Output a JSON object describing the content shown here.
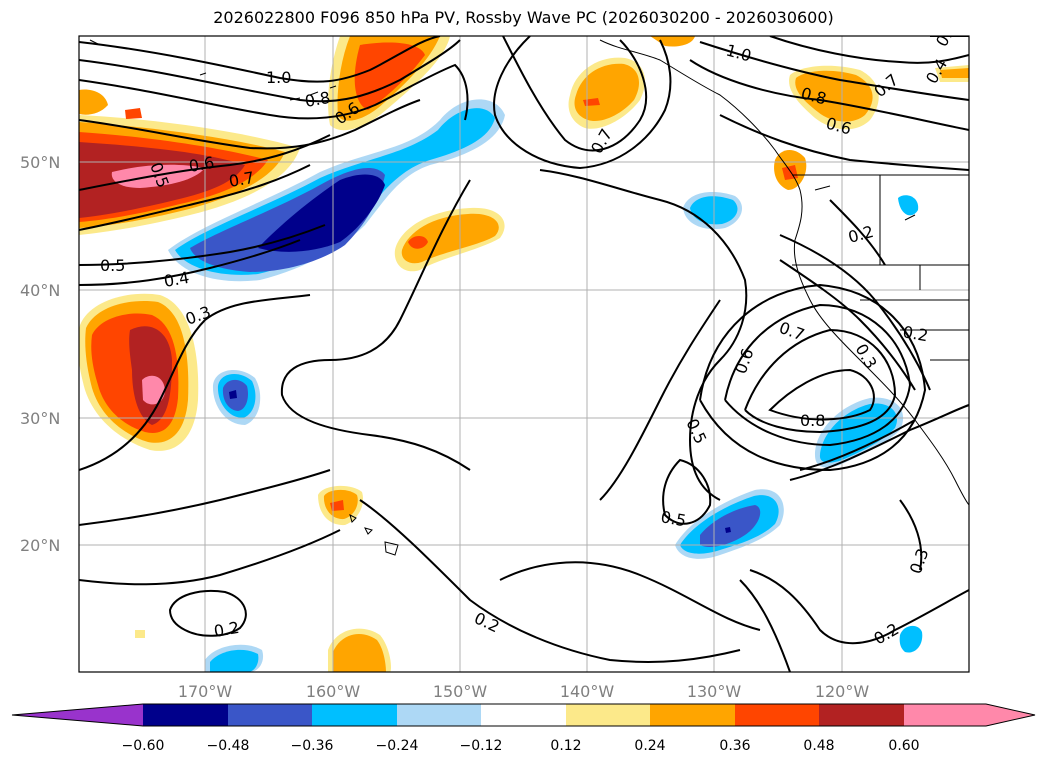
{
  "title": "2026022800 F096 850 hPa PV, Rossby Wave PC (2026030200 - 2026030600)",
  "colors": {
    "n060": "#9933cc",
    "n048": "#00008b",
    "n036": "#3a56c8",
    "n024": "#00bfff",
    "n012": "#add8f5",
    "zero": "#ffffff",
    "p012": "#fce98a",
    "p024": "#ffa500",
    "p036": "#ff4500",
    "p048": "#b22222",
    "p060": "#ff88aa"
  },
  "lat_labels": [
    "50°N",
    "40°N",
    "30°N",
    "20°N"
  ],
  "lon_labels": [
    "170°W",
    "160°W",
    "150°W",
    "140°W",
    "130°W",
    "120°W"
  ],
  "colorbar": {
    "ticks": [
      "−0.60",
      "−0.48",
      "−0.36",
      "−0.24",
      "−0.12",
      "0.12",
      "0.24",
      "0.36",
      "0.48",
      "0.60"
    ]
  },
  "contour_labels": [
    {
      "text": "1.0"
    },
    {
      "text": "0.8"
    },
    {
      "text": "0.6"
    },
    {
      "text": "0.5"
    },
    {
      "text": "0.6"
    },
    {
      "text": "0.7"
    },
    {
      "text": "0.5"
    },
    {
      "text": "0.4"
    },
    {
      "text": "0.3"
    },
    {
      "text": "0.7"
    },
    {
      "text": "1.0"
    },
    {
      "text": "0.8"
    },
    {
      "text": "0.6"
    },
    {
      "text": "0.7"
    },
    {
      "text": "0.2"
    },
    {
      "text": "0.7"
    },
    {
      "text": "0.6"
    },
    {
      "text": "0.3"
    },
    {
      "text": "0.2"
    },
    {
      "text": "0.8"
    },
    {
      "text": "0.5"
    },
    {
      "text": "0.5"
    },
    {
      "text": "0.2"
    },
    {
      "text": "0.2"
    },
    {
      "text": "0.3"
    },
    {
      "text": "0.2"
    },
    {
      "text": "0.4"
    },
    {
      "text": "0.5"
    }
  ]
}
